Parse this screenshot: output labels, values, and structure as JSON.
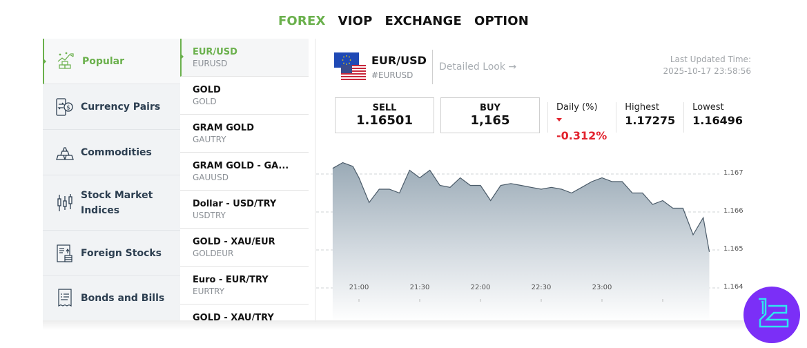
{
  "top_tabs": [
    {
      "label": "FOREX",
      "active": true
    },
    {
      "label": "VIOP",
      "active": false
    },
    {
      "label": "EXCHANGE",
      "active": false
    },
    {
      "label": "OPTION",
      "active": false
    }
  ],
  "sidebar": {
    "items": [
      {
        "label": "Popular",
        "icon": "trending-gold-icon",
        "active": true
      },
      {
        "label": "Currency Pairs",
        "icon": "currency-exchange-icon",
        "active": false
      },
      {
        "label": "Commodities",
        "icon": "gold-bars-icon",
        "active": false
      },
      {
        "label": "Stock Market Indices",
        "icon": "candlestick-icon",
        "active": false
      },
      {
        "label": "Foreign Stocks",
        "icon": "stock-document-icon",
        "active": false
      },
      {
        "label": "Bonds and Bills",
        "icon": "receipt-icon",
        "active": false
      }
    ]
  },
  "instrument_list": {
    "items": [
      {
        "title": "EUR/USD",
        "code": "EURUSD",
        "active": true
      },
      {
        "title": "GOLD",
        "code": "GOLD",
        "active": false
      },
      {
        "title": "GRAM GOLD",
        "code": "GAUTRY",
        "active": false
      },
      {
        "title": "GRAM GOLD - GA...",
        "code": "GAUUSD",
        "active": false
      },
      {
        "title": "Dollar - USD/TRY",
        "code": "USDTRY",
        "active": false
      },
      {
        "title": "GOLD - XAU/EUR",
        "code": "GOLDEUR",
        "active": false
      },
      {
        "title": "Euro - EUR/TRY",
        "code": "EURTRY",
        "active": false
      },
      {
        "title": "GOLD - XAU/TRY",
        "code": "",
        "active": false
      }
    ]
  },
  "detail": {
    "name": "EUR/USD",
    "code": "#EURUSD",
    "detailed_link": "Detailed Look →",
    "updated_label": "Last Updated Time:",
    "updated_value": "2025-10-17 23:58:56",
    "sell_label": "SELL",
    "sell_value": "1.16501",
    "buy_label": "BUY",
    "buy_value": "1,165",
    "daily_label": "Daily (%)",
    "daily_value": "-0.312%",
    "highest_label": "Highest",
    "highest_value": "1.17275",
    "lowest_label": "Lowest",
    "lowest_value": "1.16496"
  },
  "colors": {
    "accent": "#6ab04c",
    "negative": "#e2232e",
    "chart_line": "#4a5a68",
    "chart_fill_top": "#9aaab6",
    "brand_logo": "#7b2ff7"
  },
  "chart_data": {
    "type": "area",
    "title": "",
    "xlabel": "",
    "ylabel": "",
    "x_ticks": [
      "21:00",
      "21:30",
      "22:00",
      "22:30",
      "23:00"
    ],
    "y_ticks": [
      "1.167",
      "1.166",
      "1.165",
      "1.164"
    ],
    "ylim": [
      1.164,
      1.1673
    ],
    "grid": true,
    "series": [
      {
        "name": "EUR/USD",
        "x": [
          "20:47",
          "20:52",
          "20:57",
          "21:00",
          "21:05",
          "21:10",
          "21:15",
          "21:20",
          "21:25",
          "21:30",
          "21:35",
          "21:40",
          "21:45",
          "21:50",
          "21:55",
          "22:00",
          "22:05",
          "22:10",
          "22:15",
          "22:20",
          "22:25",
          "22:30",
          "22:35",
          "22:40",
          "22:45",
          "22:50",
          "22:55",
          "23:00",
          "23:05",
          "23:10",
          "23:15",
          "23:20",
          "23:25",
          "23:30",
          "23:35",
          "23:40",
          "23:45",
          "23:50",
          "23:53"
        ],
        "values": [
          1.16715,
          1.1673,
          1.1672,
          1.1669,
          1.16625,
          1.1666,
          1.1666,
          1.1665,
          1.1671,
          1.1669,
          1.1671,
          1.1667,
          1.16665,
          1.1669,
          1.1667,
          1.1667,
          1.1663,
          1.1667,
          1.16675,
          1.1667,
          1.16665,
          1.1666,
          1.16665,
          1.1666,
          1.1665,
          1.16665,
          1.1668,
          1.1669,
          1.1668,
          1.1668,
          1.1665,
          1.1665,
          1.1662,
          1.1663,
          1.1661,
          1.1661,
          1.1654,
          1.16585,
          1.16495
        ]
      }
    ]
  }
}
